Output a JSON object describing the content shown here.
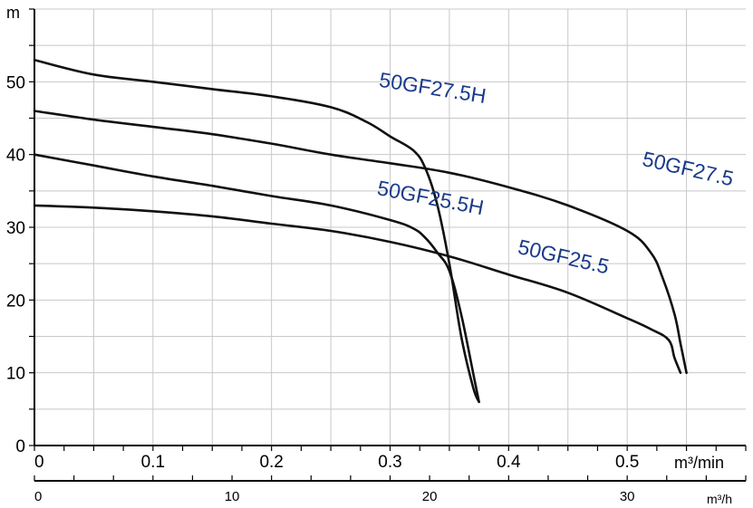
{
  "chart_data": {
    "type": "line",
    "title": "",
    "ylabel": "m",
    "xlabel": "m³/min",
    "xlabel_secondary": "m³/h",
    "xlim": [
      0,
      0.6
    ],
    "ylim": [
      0,
      60
    ],
    "x_ticks": [
      "0",
      "0.1",
      "0.2",
      "0.3",
      "0.4",
      "0.5"
    ],
    "x_tick_values": [
      0,
      0.1,
      0.2,
      0.3,
      0.4,
      0.5
    ],
    "x_secondary_ticks": [
      "0",
      "10",
      "20",
      "30"
    ],
    "x_secondary_tick_values": [
      0,
      10,
      20,
      30
    ],
    "y_ticks": [
      "0",
      "10",
      "20",
      "30",
      "40",
      "50"
    ],
    "y_tick_values": [
      0,
      10,
      20,
      30,
      40,
      50
    ],
    "grid": true,
    "series": [
      {
        "name": "50GF27.5H",
        "label_at": [
          0.335,
          48.2
        ],
        "label_rotate": 9,
        "x": [
          0,
          0.05,
          0.1,
          0.15,
          0.2,
          0.25,
          0.28,
          0.3,
          0.32,
          0.33,
          0.34,
          0.35,
          0.36,
          0.37,
          0.375
        ],
        "y": [
          53,
          51,
          50,
          49,
          48,
          46.5,
          44.5,
          42.5,
          40.5,
          38,
          33,
          25,
          15,
          8,
          6
        ]
      },
      {
        "name": "50GF27.5",
        "label_at": [
          0.55,
          37.1
        ],
        "label_rotate": 13,
        "x": [
          0,
          0.05,
          0.1,
          0.15,
          0.2,
          0.25,
          0.3,
          0.35,
          0.4,
          0.45,
          0.5,
          0.52,
          0.53,
          0.54,
          0.545,
          0.55
        ],
        "y": [
          46,
          44.8,
          43.8,
          42.8,
          41.5,
          40,
          38.8,
          37.5,
          35.5,
          33,
          29.5,
          26.5,
          23,
          18,
          14,
          10
        ]
      },
      {
        "name": "50GF25.5H",
        "label_at": [
          0.333,
          33.1
        ],
        "label_rotate": 11,
        "x": [
          0,
          0.05,
          0.1,
          0.15,
          0.2,
          0.25,
          0.3,
          0.32,
          0.33,
          0.34,
          0.35,
          0.36,
          0.37,
          0.375
        ],
        "y": [
          40,
          38.5,
          37,
          35.7,
          34.3,
          33,
          31,
          29.8,
          28.5,
          26.5,
          24,
          18,
          10,
          6
        ]
      },
      {
        "name": "50GF25.5",
        "label_at": [
          0.445,
          25
        ],
        "label_rotate": 13,
        "x": [
          0,
          0.05,
          0.1,
          0.15,
          0.2,
          0.25,
          0.3,
          0.35,
          0.4,
          0.45,
          0.5,
          0.52,
          0.535,
          0.54,
          0.545
        ],
        "y": [
          33,
          32.7,
          32.2,
          31.5,
          30.5,
          29.5,
          28,
          26,
          23.5,
          21,
          17.5,
          16,
          14.5,
          12,
          10
        ]
      }
    ]
  }
}
